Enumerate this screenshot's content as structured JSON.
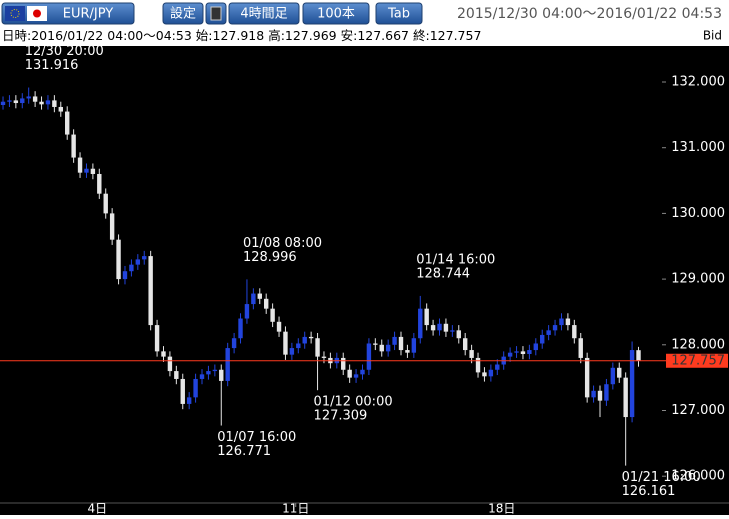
{
  "toolbar": {
    "symbol": "EUR/JPY",
    "settings": "設定",
    "timeframe": "4時間足",
    "count": "100本",
    "tab": "Tab",
    "range": "2015/12/30 04:00～2016/01/22 04:53"
  },
  "info": {
    "time_label": "日時:",
    "time": "2016/01/22 04:00～04:53",
    "open_label": "始:",
    "high_label": "高:",
    "low_label": "安:",
    "close_label": "終:",
    "side": "Bid"
  },
  "chart_data": {
    "type": "candlestick",
    "up_color": "#2244dd",
    "down_color": "#e6e6e6",
    "last_line_color": "#ff3b1f",
    "open": [
      131.65,
      131.7,
      131.72,
      131.68,
      131.75,
      131.78,
      131.7,
      131.66,
      131.72,
      131.62,
      131.55,
      131.2,
      130.85,
      130.62,
      130.68,
      130.6,
      130.3,
      130.0,
      129.6,
      129.0,
      129.12,
      129.22,
      129.3,
      129.35,
      128.3,
      127.9,
      127.82,
      127.6,
      127.48,
      127.1,
      127.2,
      127.48,
      127.55,
      127.6,
      127.62,
      127.45,
      127.95,
      128.1,
      128.4,
      128.62,
      128.78,
      128.7,
      128.55,
      128.35,
      128.2,
      127.85,
      127.95,
      128.02,
      128.12,
      128.1,
      127.82,
      127.8,
      127.72,
      127.8,
      127.62,
      127.5,
      127.55,
      127.62,
      128.02,
      128.0,
      127.9,
      128.0,
      128.12,
      127.92,
      127.88,
      128.1,
      128.55,
      128.3,
      128.22,
      128.32,
      128.2,
      128.22,
      128.1,
      127.92,
      127.8,
      127.58,
      127.52,
      127.62,
      127.7,
      127.82,
      127.88,
      127.9,
      127.86,
      127.92,
      128.02,
      128.15,
      128.22,
      128.3,
      128.4,
      128.3,
      128.1,
      127.8,
      127.2,
      127.3,
      127.15,
      127.4,
      127.65,
      127.5,
      126.9,
      127.918
    ],
    "high": [
      131.78,
      131.8,
      131.8,
      131.83,
      131.916,
      131.86,
      131.78,
      131.8,
      131.8,
      131.7,
      131.63,
      131.28,
      130.93,
      130.76,
      130.76,
      130.68,
      130.38,
      130.08,
      129.68,
      129.2,
      129.3,
      129.38,
      129.43,
      129.43,
      128.38,
      127.98,
      127.9,
      127.68,
      127.56,
      127.28,
      127.56,
      127.63,
      127.68,
      127.7,
      127.7,
      128.03,
      128.18,
      128.48,
      128.996,
      128.86,
      128.86,
      128.78,
      128.63,
      128.43,
      128.28,
      128.03,
      128.1,
      128.2,
      128.2,
      128.18,
      127.9,
      127.88,
      127.88,
      127.88,
      127.7,
      127.63,
      127.7,
      128.1,
      128.1,
      128.08,
      128.08,
      128.2,
      128.2,
      128.0,
      128.18,
      128.744,
      128.63,
      128.38,
      128.4,
      128.4,
      128.3,
      128.3,
      128.18,
      128.0,
      127.88,
      127.66,
      127.7,
      127.78,
      127.9,
      127.96,
      127.98,
      127.98,
      128.0,
      128.1,
      128.23,
      128.3,
      128.38,
      128.48,
      128.48,
      128.38,
      128.18,
      127.88,
      127.38,
      127.38,
      127.48,
      127.73,
      127.73,
      127.58,
      128.05,
      127.969
    ],
    "low": [
      131.58,
      131.62,
      131.6,
      131.6,
      131.67,
      131.62,
      131.58,
      131.58,
      131.54,
      131.47,
      131.12,
      130.77,
      130.54,
      130.54,
      130.52,
      130.22,
      129.92,
      129.52,
      128.92,
      128.92,
      129.04,
      129.14,
      129.22,
      128.22,
      127.82,
      127.74,
      127.52,
      127.4,
      127.02,
      127.02,
      127.12,
      127.4,
      127.47,
      127.52,
      126.771,
      127.37,
      127.87,
      128.02,
      128.32,
      128.54,
      128.62,
      128.47,
      128.27,
      128.12,
      127.77,
      127.77,
      127.87,
      127.94,
      128.02,
      127.309,
      127.72,
      127.64,
      127.64,
      127.54,
      127.42,
      127.42,
      127.47,
      127.54,
      127.92,
      127.82,
      127.82,
      127.92,
      127.84,
      127.8,
      127.8,
      128.02,
      128.22,
      128.14,
      128.14,
      128.12,
      128.12,
      128.02,
      127.84,
      127.72,
      127.5,
      127.44,
      127.44,
      127.54,
      127.62,
      127.74,
      127.8,
      127.78,
      127.78,
      127.84,
      127.94,
      128.07,
      128.14,
      128.22,
      128.22,
      128.02,
      127.72,
      127.12,
      127.12,
      126.9,
      127.07,
      127.32,
      127.42,
      126.161,
      126.82,
      127.667
    ],
    "close": [
      131.7,
      131.72,
      131.68,
      131.75,
      131.78,
      131.7,
      131.66,
      131.72,
      131.62,
      131.55,
      131.2,
      130.85,
      130.62,
      130.68,
      130.6,
      130.3,
      130.0,
      129.6,
      129.0,
      129.12,
      129.22,
      129.3,
      129.35,
      128.3,
      127.9,
      127.82,
      127.6,
      127.48,
      127.1,
      127.2,
      127.48,
      127.55,
      127.6,
      127.62,
      127.45,
      127.95,
      128.1,
      128.4,
      128.62,
      128.78,
      128.7,
      128.55,
      128.35,
      128.2,
      127.85,
      127.95,
      128.02,
      128.12,
      128.1,
      127.82,
      127.8,
      127.72,
      127.8,
      127.62,
      127.5,
      127.55,
      127.62,
      128.02,
      128.0,
      127.9,
      128.0,
      128.12,
      127.92,
      127.88,
      128.1,
      128.55,
      128.3,
      128.22,
      128.32,
      128.2,
      128.22,
      128.1,
      127.92,
      127.8,
      127.58,
      127.52,
      127.62,
      127.7,
      127.82,
      127.88,
      127.9,
      127.86,
      127.92,
      128.02,
      128.15,
      128.22,
      128.3,
      128.4,
      128.3,
      128.1,
      127.8,
      127.2,
      127.3,
      127.15,
      127.4,
      127.65,
      127.5,
      126.9,
      127.92,
      127.757
    ],
    "ylim": [
      125.592,
      132.548
    ],
    "yticks": [
      {
        "value": 126,
        "label": "126.000"
      },
      {
        "value": 127,
        "label": "127.000"
      },
      {
        "value": 128,
        "label": "128.000"
      },
      {
        "value": 129,
        "label": "129.000"
      },
      {
        "value": 130,
        "label": "130.000"
      },
      {
        "value": 131,
        "label": "131.000"
      },
      {
        "value": 132,
        "label": "132.000"
      }
    ],
    "xlim": [
      -0.47,
      102.66
    ],
    "xticks": [
      {
        "value": 14.7,
        "label": "4日"
      },
      {
        "value": 45.6,
        "label": "11日"
      },
      {
        "value": 77.7,
        "label": "18日"
      }
    ],
    "annotations": [
      {
        "time": "12/30 20:00",
        "value": 131.916
      },
      {
        "time": "01/07 16:00",
        "value": 126.771
      },
      {
        "time": "01/08 08:00",
        "value": 128.996
      },
      {
        "time": "01/12 00:00",
        "value": 127.309
      },
      {
        "time": "01/14 16:00",
        "value": 128.744
      },
      {
        "time": "01/21 16:00",
        "value": 126.161
      }
    ]
  }
}
